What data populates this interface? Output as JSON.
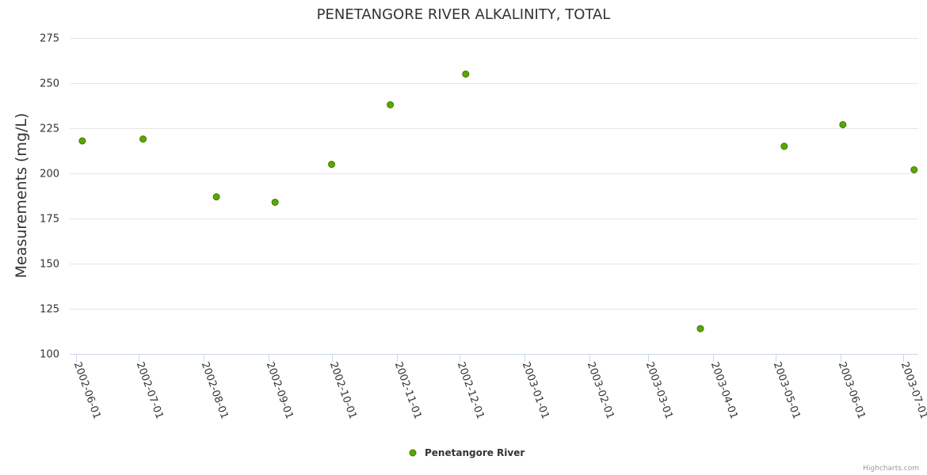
{
  "chart_data": {
    "type": "scatter",
    "title": "PENETANGORE RIVER ALKALINITY, TOTAL",
    "xlabel": "",
    "ylabel": "Measurements (mg/L)",
    "ylim": [
      100,
      275
    ],
    "yticks": [
      "100",
      "125",
      "150",
      "175",
      "200",
      "225",
      "250",
      "275"
    ],
    "xlim": [
      "2002-05-29",
      "2003-07-08"
    ],
    "xticks": [
      "2002-06-01",
      "2002-07-01",
      "2002-08-01",
      "2002-09-01",
      "2002-10-01",
      "2002-11-01",
      "2002-12-01",
      "2003-01-01",
      "2003-02-01",
      "2003-03-01",
      "2003-04-01",
      "2003-05-01",
      "2003-06-01",
      "2003-07-01"
    ],
    "grid": true,
    "legend": "bottom-center",
    "series": [
      {
        "name": "Penetangore River",
        "color": "#5aa800",
        "points": [
          {
            "x": "2002-06-04",
            "y": 218
          },
          {
            "x": "2002-07-03",
            "y": 219
          },
          {
            "x": "2002-08-07",
            "y": 187
          },
          {
            "x": "2002-09-04",
            "y": 184
          },
          {
            "x": "2002-10-01",
            "y": 205
          },
          {
            "x": "2002-10-29",
            "y": 238
          },
          {
            "x": "2002-12-04",
            "y": 255
          },
          {
            "x": "2003-03-26",
            "y": 114
          },
          {
            "x": "2003-05-05",
            "y": 215
          },
          {
            "x": "2003-06-02",
            "y": 227
          },
          {
            "x": "2003-07-06",
            "y": 202
          }
        ]
      }
    ]
  },
  "credits": "Highcharts.com"
}
